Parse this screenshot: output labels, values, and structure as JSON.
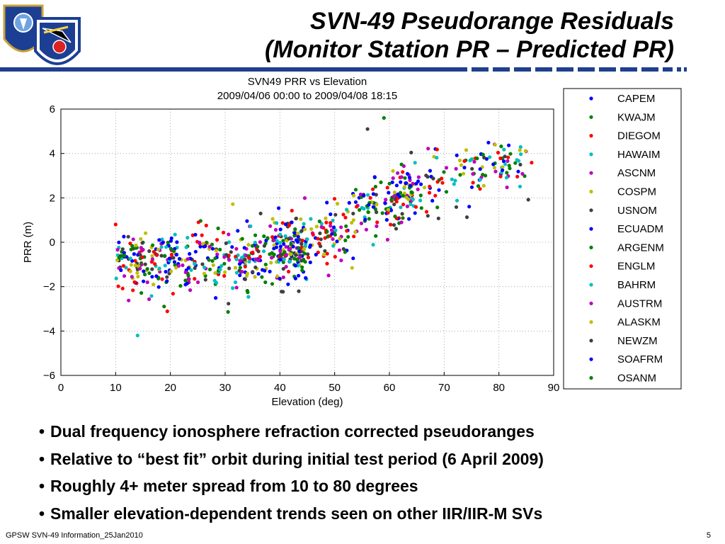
{
  "slide": {
    "title_line1": "SVN-49 Pseudorange Residuals",
    "title_line2": "(Monitor Station PR – Predicted PR)",
    "logo_icon": "air-force-space-command-shields-icon",
    "accent_color": "#1f3f8f"
  },
  "bullets": [
    "Dual frequency ionosphere refraction corrected pseudoranges",
    "Relative to “best fit” orbit during initial test period (6 April 2009)",
    "Roughly 4+ meter spread from 10 to 80 degrees",
    "Smaller elevation-dependent trends seen on other IIR/IIR-M SVs"
  ],
  "footer": {
    "left": "GPSW SVN-49 Information_25Jan2010",
    "page_number": "5"
  },
  "chart_data": {
    "type": "scatter",
    "title": "SVN49 PRR vs Elevation",
    "subtitle": "2009/04/06 00:00 to 2009/04/08 18:15",
    "xlabel": "Elevation (deg)",
    "ylabel": "PRR (m)",
    "xlim": [
      0,
      90
    ],
    "ylim": [
      -6,
      6
    ],
    "xticks": [
      "0",
      "10",
      "20",
      "30",
      "40",
      "50",
      "60",
      "70",
      "80",
      "90"
    ],
    "yticks": [
      "6",
      "4",
      "2",
      "0",
      "−2",
      "−4",
      "−6"
    ],
    "grid": true,
    "legend_position": "right",
    "series": [
      {
        "name": "CAPEM",
        "color": "#0000ff"
      },
      {
        "name": "KWAJM",
        "color": "#008000"
      },
      {
        "name": "DIEGOM",
        "color": "#ff0000"
      },
      {
        "name": "HAWAIM",
        "color": "#00bfbf"
      },
      {
        "name": "ASCNM",
        "color": "#bf00bf"
      },
      {
        "name": "COSPM",
        "color": "#bfbf00"
      },
      {
        "name": "USNOM",
        "color": "#404040"
      },
      {
        "name": "ECUADM",
        "color": "#0000ff"
      },
      {
        "name": "ARGENM",
        "color": "#008000"
      },
      {
        "name": "ENGLM",
        "color": "#ff0000"
      },
      {
        "name": "BAHRM",
        "color": "#00bfbf"
      },
      {
        "name": "AUSTRM",
        "color": "#bf00bf"
      },
      {
        "name": "ALASKM",
        "color": "#bfbf00"
      },
      {
        "name": "NEWZM",
        "color": "#404040"
      },
      {
        "name": "SOAFRM",
        "color": "#0000ff"
      },
      {
        "name": "OSANM",
        "color": "#008000"
      }
    ],
    "trend": {
      "description_points": [
        [
          10,
          -0.9
        ],
        [
          30,
          -0.8
        ],
        [
          45,
          -0.2
        ],
        [
          55,
          1.2
        ],
        [
          65,
          2.5
        ],
        [
          80,
          3.5
        ]
      ],
      "spread": 0.7
    },
    "outliers": [
      [
        14,
        -4.2
      ],
      [
        59,
        5.6
      ],
      [
        56,
        5.1
      ],
      [
        10,
        0.8
      ]
    ]
  }
}
